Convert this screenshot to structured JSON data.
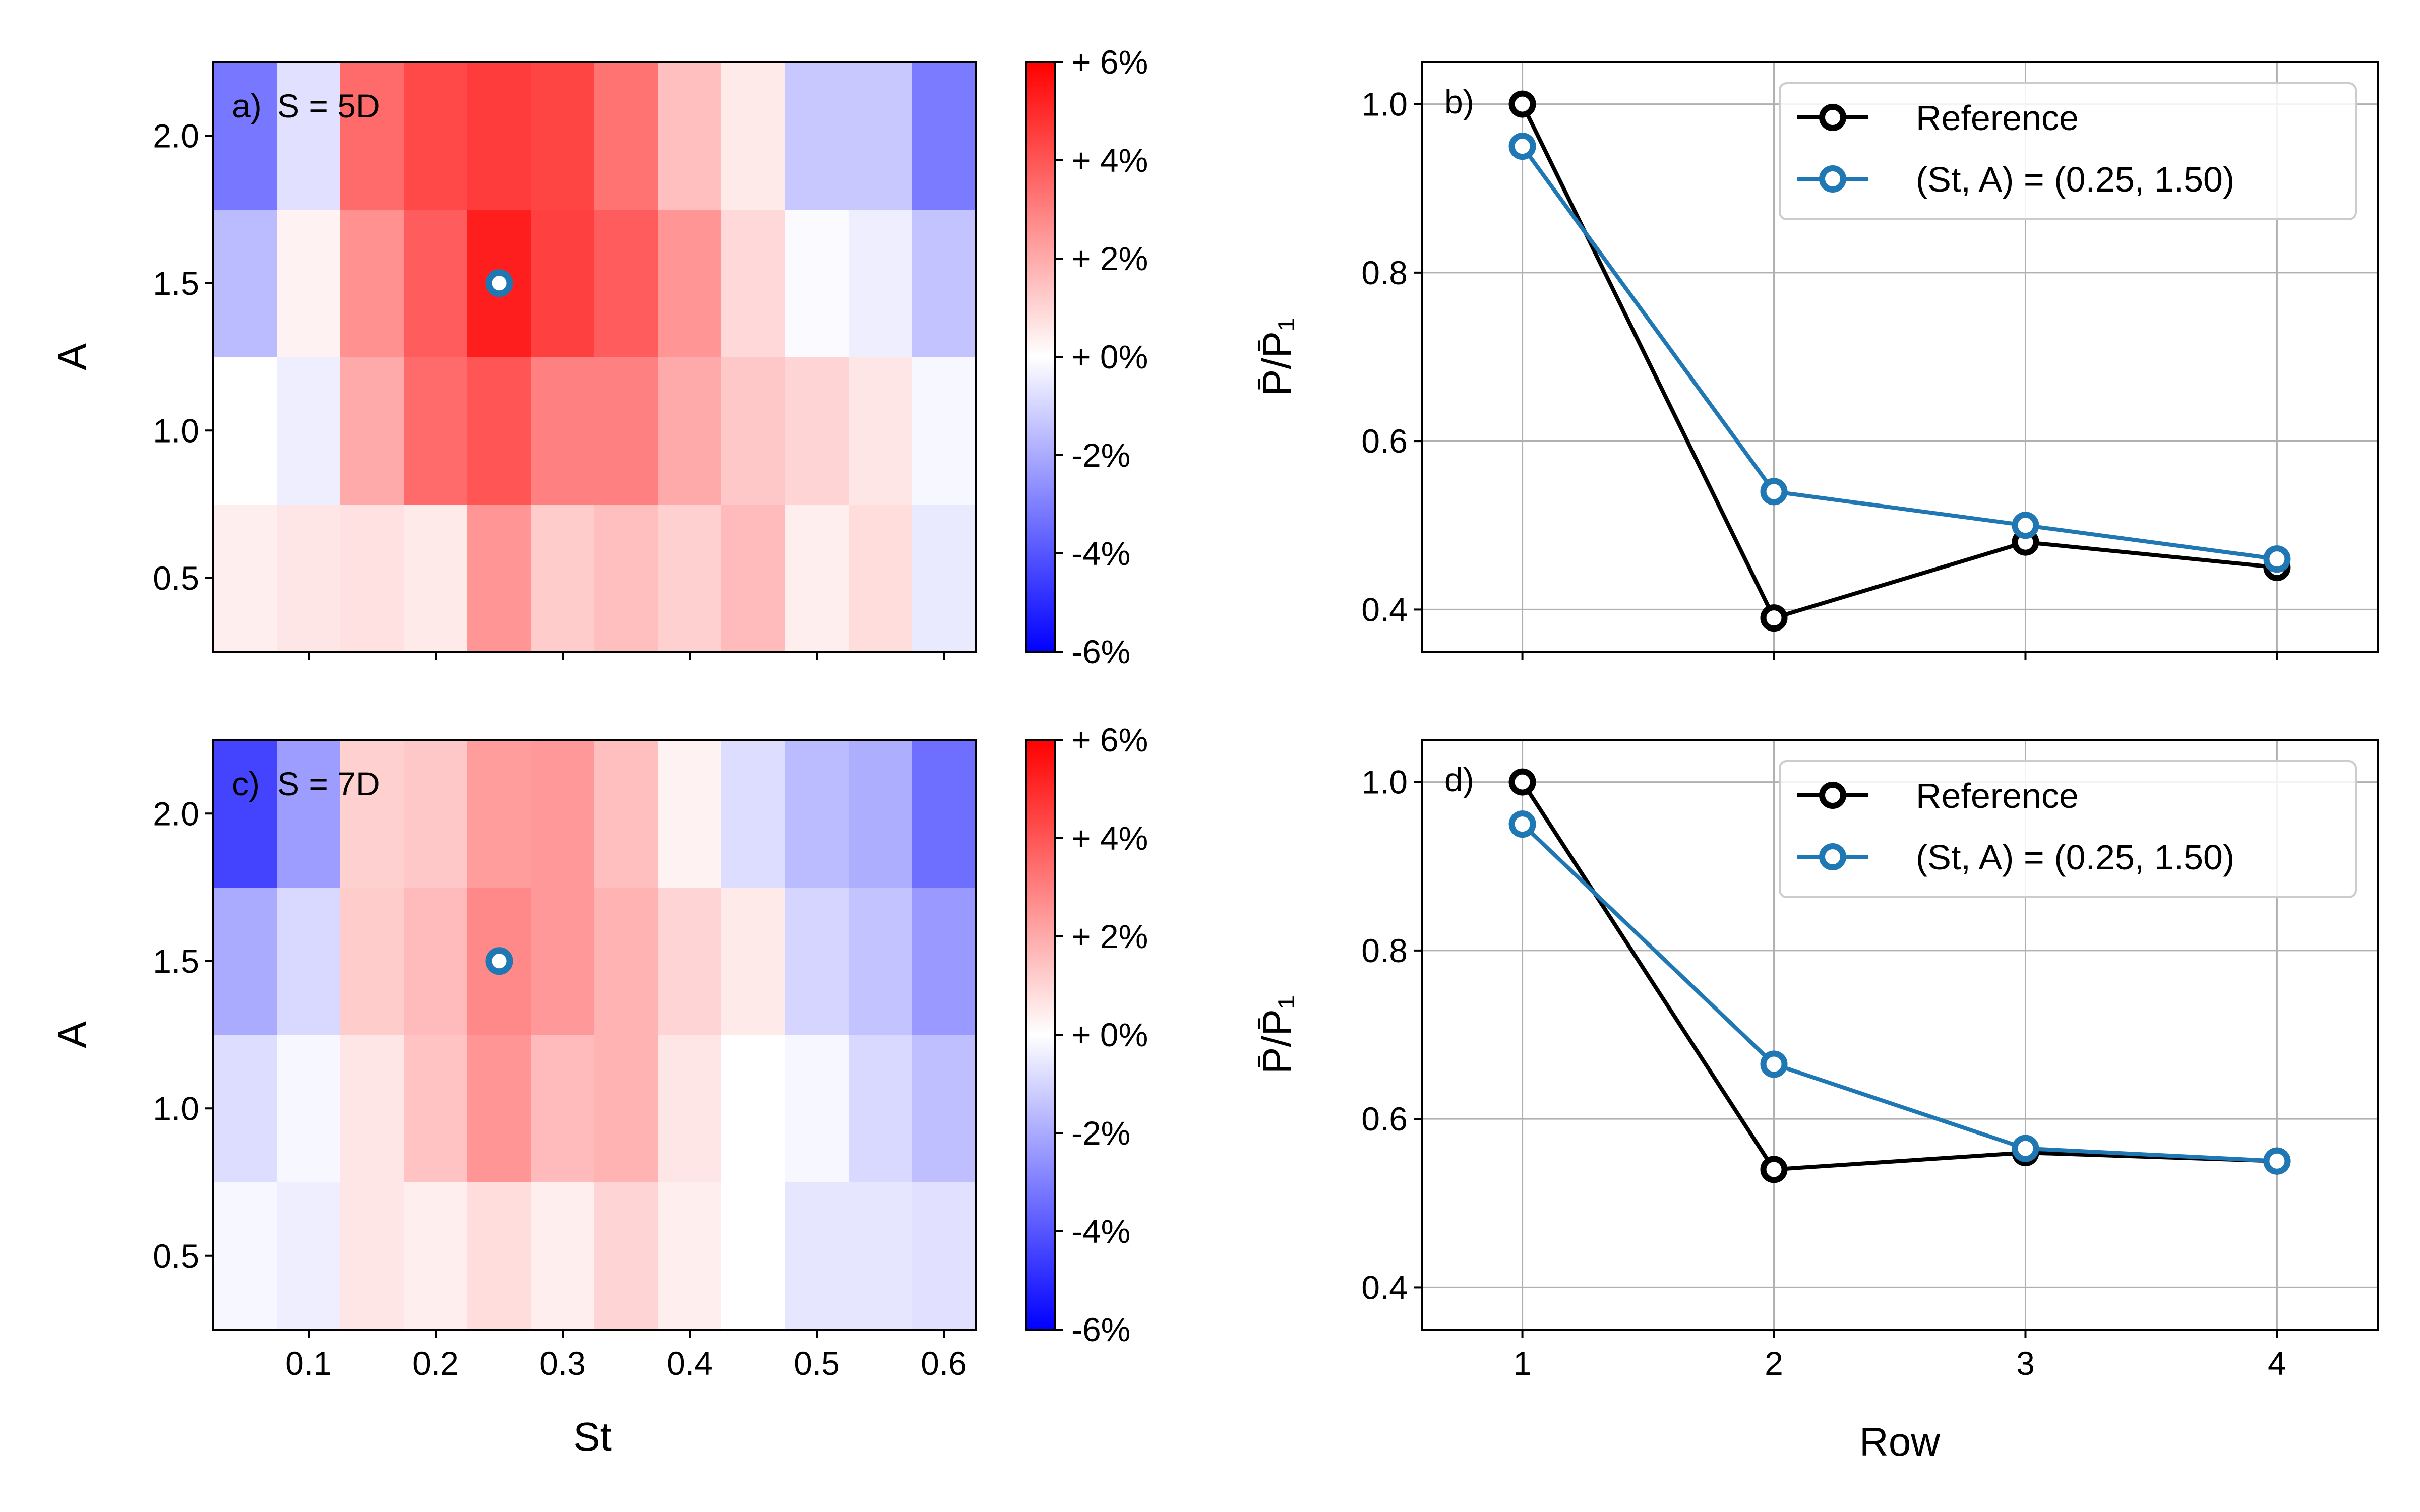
{
  "chart_data": [
    {
      "type": "heatmap",
      "panel_label": "a)",
      "title": "S = 5D",
      "xlabel": "",
      "ylabel": "A",
      "x": [
        0.05,
        0.1,
        0.15,
        0.2,
        0.25,
        0.3,
        0.35,
        0.4,
        0.45,
        0.5,
        0.55,
        0.6
      ],
      "y": [
        0.5,
        1.0,
        1.5,
        2.0
      ],
      "xlim": [
        0.025,
        0.625
      ],
      "ylim": [
        0.25,
        2.25
      ],
      "xticks": [
        0.1,
        0.2,
        0.3,
        0.4,
        0.5,
        0.6
      ],
      "xtick_labels_visible": false,
      "yticks": [
        "0.5",
        "1.0",
        "1.5",
        "2.0"
      ],
      "z_percent": [
        [
          0.4,
          0.6,
          0.7,
          0.5,
          2.5,
          1.2,
          1.5,
          1.1,
          1.6,
          0.4,
          0.8,
          -0.5
        ],
        [
          0.0,
          -0.4,
          2.0,
          3.5,
          4.0,
          3.0,
          3.0,
          2.0,
          1.3,
          1.0,
          0.6,
          -0.2
        ],
        [
          -1.6,
          0.3,
          2.6,
          3.8,
          5.3,
          4.5,
          3.8,
          2.5,
          0.9,
          -0.1,
          -0.4,
          -1.4
        ],
        [
          -3.2,
          -0.7,
          3.5,
          4.3,
          4.6,
          4.4,
          3.3,
          1.5,
          0.5,
          -1.3,
          -1.3,
          -3.1
        ]
      ],
      "marker": {
        "x": 0.25,
        "y": 1.5
      },
      "colorbar": {
        "min": -6,
        "max": 6,
        "ticks": [
          "+ 6%",
          "+ 4%",
          "+ 2%",
          "+ 0%",
          "-2%",
          "-4%",
          "-6%"
        ]
      },
      "colors": {
        "low": "#0000ff",
        "mid": "#ffffff",
        "high": "#ff0000",
        "marker": "#1f77b4"
      }
    },
    {
      "type": "line",
      "panel_label": "b)",
      "x": [
        1,
        2,
        3,
        4
      ],
      "xticks": [
        "1",
        "2",
        "3",
        "4"
      ],
      "xtick_labels_visible": false,
      "xlim": [
        0.6,
        4.4
      ],
      "ylim": [
        0.35,
        1.05
      ],
      "yticks": [
        "0.4",
        "0.6",
        "0.8",
        "1.0"
      ],
      "ylabel": "P̄/P̄₁",
      "xlabel": "",
      "grid": true,
      "legend_position": "upper-right",
      "series": [
        {
          "name": "Reference",
          "values": [
            1.0,
            0.39,
            0.48,
            0.45
          ],
          "color": "#000000"
        },
        {
          "name": "(St, A) = (0.25, 1.50)",
          "values": [
            0.95,
            0.54,
            0.5,
            0.46
          ],
          "color": "#1f77b4"
        }
      ]
    },
    {
      "type": "heatmap",
      "panel_label": "c)",
      "title": "S = 7D",
      "xlabel": "St",
      "ylabel": "A",
      "x": [
        0.05,
        0.1,
        0.15,
        0.2,
        0.25,
        0.3,
        0.35,
        0.4,
        0.45,
        0.5,
        0.55,
        0.6
      ],
      "y": [
        0.5,
        1.0,
        1.5,
        2.0
      ],
      "xlim": [
        0.025,
        0.625
      ],
      "ylim": [
        0.25,
        2.25
      ],
      "xticks": [
        "0.1",
        "0.2",
        "0.3",
        "0.4",
        "0.5",
        "0.6"
      ],
      "xtick_labels_visible": true,
      "yticks": [
        "0.5",
        "1.0",
        "1.5",
        "2.0"
      ],
      "z_percent": [
        [
          -0.2,
          -0.4,
          0.6,
          0.4,
          0.8,
          0.4,
          1.0,
          0.4,
          0.0,
          -0.6,
          -0.6,
          -0.7
        ],
        [
          -0.8,
          -0.2,
          0.6,
          1.4,
          2.5,
          1.6,
          1.8,
          0.6,
          0.0,
          -0.2,
          -0.9,
          -1.5
        ],
        [
          -2.0,
          -0.9,
          1.2,
          1.6,
          2.8,
          2.4,
          1.8,
          1.0,
          0.5,
          -1.0,
          -1.4,
          -2.4
        ],
        [
          -4.4,
          -2.3,
          1.1,
          1.3,
          2.3,
          2.4,
          1.5,
          0.3,
          -0.8,
          -1.6,
          -1.9,
          -3.4
        ]
      ],
      "marker": {
        "x": 0.25,
        "y": 1.5
      },
      "colorbar": {
        "min": -6,
        "max": 6,
        "ticks": [
          "+ 6%",
          "+ 4%",
          "+ 2%",
          "+ 0%",
          "-2%",
          "-4%",
          "-6%"
        ]
      },
      "colors": {
        "low": "#0000ff",
        "mid": "#ffffff",
        "high": "#ff0000",
        "marker": "#1f77b4"
      }
    },
    {
      "type": "line",
      "panel_label": "d)",
      "x": [
        1,
        2,
        3,
        4
      ],
      "xticks": [
        "1",
        "2",
        "3",
        "4"
      ],
      "xtick_labels_visible": true,
      "xlim": [
        0.6,
        4.4
      ],
      "ylim": [
        0.35,
        1.05
      ],
      "yticks": [
        "0.4",
        "0.6",
        "0.8",
        "1.0"
      ],
      "ylabel": "P̄/P̄₁",
      "xlabel": "Row",
      "grid": true,
      "legend_position": "upper-right",
      "series": [
        {
          "name": "Reference",
          "values": [
            1.0,
            0.54,
            0.56,
            0.55
          ],
          "color": "#000000"
        },
        {
          "name": "(St, A) = (0.25, 1.50)",
          "values": [
            0.95,
            0.665,
            0.565,
            0.55
          ],
          "color": "#1f77b4"
        }
      ]
    }
  ]
}
